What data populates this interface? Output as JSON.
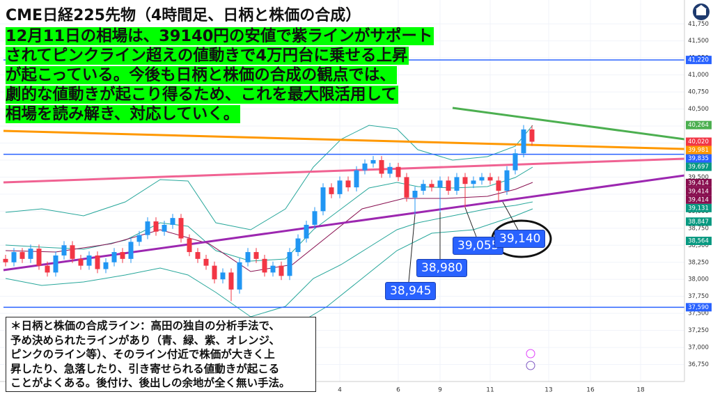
{
  "chart_data": {
    "type": "candlestick",
    "title": "CME日経225先物（4時間足、日柄と株価の合成）",
    "subtitle": [
      "12月11日の相場は、39140円の安値で紫ラインがサポート",
      "されてピンクライン超えの値動きで4万円台に乗せる上昇",
      "が起こっている。今後も日柄と株価の合成の観点では、",
      "劇的な値動きが起こり得るため、これを最大限活用して",
      "相場を読み解き、対応していく。"
    ],
    "note": [
      "＊日柄と株価の合成ライン：高田の独自の分析手法で、",
      "予め決められたラインがあり（青、緑、紫、オレンジ、",
      "ピンクのライン等）、そのライン付近で株価が大きく上",
      "昇したり、急落したり、引き寄せられる値動きが起こる",
      "ことがよくある。後付け、後出しの余地が全く無い手法。"
    ],
    "annotations": [
      "38,945",
      "38,980",
      "39,055",
      "39,140"
    ],
    "categories": [
      null,
      null,
      null,
      null,
      null,
      null,
      null,
      null,
      null,
      null,
      null,
      null,
      null,
      null,
      null,
      null,
      null,
      null,
      null,
      null,
      null,
      null,
      null,
      null,
      null,
      null,
      null,
      null,
      null,
      null,
      null,
      null,
      null,
      null,
      null,
      null,
      null,
      null,
      null,
      null,
      "4",
      null,
      null,
      null,
      null,
      null,
      null,
      "6",
      null,
      null,
      null,
      null,
      "9",
      null,
      null,
      null,
      null,
      null,
      "11",
      null,
      null,
      null,
      null,
      null,
      null,
      "13",
      null,
      null,
      null,
      null,
      "16",
      null,
      null,
      null,
      null,
      null,
      "18",
      null,
      null,
      null,
      null
    ],
    "open": [
      38300,
      38250,
      38400,
      38300,
      38450,
      38200,
      38100,
      38350,
      38500,
      38300,
      38200,
      38350,
      38150,
      38250,
      38400,
      38300,
      38550,
      38650,
      38850,
      38700,
      38800,
      38900,
      38600,
      38400,
      38300,
      38200,
      38000,
      38100,
      37850,
      38250,
      38400,
      38300,
      38100,
      38200,
      38050,
      38400,
      38600,
      38800,
      39000,
      39350,
      39250,
      39450,
      39350,
      39600,
      39700,
      39750,
      39550,
      39650,
      39500,
      39200,
      39300,
      39400,
      39350,
      39450,
      39300,
      39500,
      39400,
      39450,
      39500,
      39450,
      39300,
      39600,
      39850,
      40200,
      null,
      null,
      null,
      null,
      null,
      null,
      null,
      null,
      null,
      null,
      null,
      null,
      null,
      null,
      null,
      null,
      null
    ],
    "high": [
      38360,
      38460,
      38460,
      38510,
      38510,
      38260,
      38410,
      38560,
      38560,
      38360,
      38410,
      38410,
      38310,
      38460,
      38460,
      38610,
      38710,
      38910,
      38910,
      38860,
      38960,
      38960,
      38660,
      38460,
      38360,
      38260,
      38160,
      38160,
      38310,
      38460,
      38460,
      38360,
      38260,
      38260,
      38460,
      38660,
      38860,
      39060,
      39410,
      39410,
      39510,
      39510,
      39660,
      39760,
      39810,
      39810,
      39710,
      39710,
      39560,
      39360,
      39460,
      39460,
      39510,
      39510,
      39560,
      39560,
      39510,
      39560,
      39560,
      39510,
      39660,
      39910,
      40264,
      40260,
      null,
      null,
      null,
      null,
      null,
      null,
      null,
      null,
      null,
      null,
      null,
      null,
      null,
      null,
      null,
      null,
      null
    ],
    "low": [
      38190,
      38190,
      38240,
      38240,
      38140,
      38040,
      38040,
      38290,
      38240,
      38140,
      38140,
      38090,
      38090,
      38190,
      38240,
      38240,
      38490,
      38590,
      38640,
      38640,
      38740,
      38540,
      38340,
      38240,
      38140,
      37940,
      37940,
      37680,
      37790,
      38190,
      38240,
      38040,
      38040,
      37990,
      37990,
      38340,
      38540,
      38740,
      38940,
      39190,
      39190,
      39290,
      39290,
      39540,
      39640,
      39490,
      39490,
      39440,
      39140,
      38945,
      39240,
      39290,
      38980,
      39240,
      39240,
      39055,
      39340,
      39390,
      39390,
      39140,
      39240,
      39540,
      39790,
      39960,
      null,
      null,
      null,
      null,
      null,
      null,
      null,
      null,
      null,
      null,
      null,
      null,
      null,
      null,
      null,
      null,
      null
    ],
    "close": [
      38250,
      38400,
      38300,
      38450,
      38200,
      38100,
      38350,
      38500,
      38300,
      38200,
      38350,
      38150,
      38250,
      38400,
      38300,
      38550,
      38650,
      38850,
      38700,
      38800,
      38900,
      38600,
      38400,
      38300,
      38200,
      38000,
      38100,
      37850,
      38250,
      38400,
      38300,
      38100,
      38200,
      38050,
      38400,
      38600,
      38800,
      39000,
      39350,
      39250,
      39450,
      39350,
      39600,
      39700,
      39750,
      39550,
      39650,
      39500,
      39200,
      39300,
      39400,
      39350,
      39450,
      39300,
      39500,
      39400,
      39450,
      39500,
      39450,
      39300,
      39600,
      39850,
      40200,
      40020,
      null,
      null,
      null,
      null,
      null,
      null,
      null,
      null,
      null,
      null,
      null,
      null,
      null,
      null,
      null,
      null,
      null
    ],
    "up_color": "#2196f3",
    "down_color": "#f23645",
    "ylim": [
      36500,
      42100
    ],
    "yticks": [
      {
        "value": 36750,
        "label": "36,750"
      },
      {
        "value": 37000,
        "label": "37,000"
      },
      {
        "value": 37250,
        "label": "37,250"
      },
      {
        "value": 37500,
        "label": "37,500"
      },
      {
        "value": 37750,
        "label": "37,750"
      },
      {
        "value": 38000,
        "label": "38,000"
      },
      {
        "value": 38250,
        "label": "38,250"
      },
      {
        "value": 38500,
        "label": "38,500"
      },
      {
        "value": 38750,
        "label": "38,750"
      },
      {
        "value": 39000,
        "label": "39,000"
      },
      {
        "value": 39250,
        "label": "39,250"
      },
      {
        "value": 39500,
        "label": "39,500"
      },
      {
        "value": 39750,
        "label": "39,750"
      },
      {
        "value": 40000,
        "label": "40,000"
      },
      {
        "value": 40250,
        "label": "40,250"
      },
      {
        "value": 40500,
        "label": "40,500"
      },
      {
        "value": 40750,
        "label": "40,750"
      },
      {
        "value": 41000,
        "label": "41,000"
      },
      {
        "value": 41250,
        "label": "41,250"
      },
      {
        "value": 41500,
        "label": "41,500"
      },
      {
        "value": 41750,
        "label": "41,750"
      }
    ],
    "grid": true,
    "price_labels": [
      {
        "value": 41220,
        "label": "41,220",
        "color": "#2962ff",
        "hline": true
      },
      {
        "value": 40264,
        "label": "40,264",
        "color": "#4caf50"
      },
      {
        "value": 40020,
        "label": "40,020",
        "color": "#f23645"
      },
      {
        "value": 39981,
        "label": "39,981",
        "color": "#ff9800"
      },
      {
        "value": 39835,
        "label": "39,835",
        "color": "#2962ff",
        "hline": true
      },
      {
        "value": 39697,
        "label": "39,697",
        "color": "#089981"
      },
      {
        "value": 39414,
        "label": "39,414",
        "color": "#880e4f"
      },
      {
        "value": 39414,
        "label": "39,414",
        "color": "#880e4f"
      },
      {
        "value": 39414,
        "label": "39,414",
        "color": "#880e4f"
      },
      {
        "value": 39131,
        "label": "39,131",
        "color": "#089981"
      },
      {
        "value": 38847,
        "label": "38,847",
        "color": "#089981"
      },
      {
        "value": 38564,
        "label": "38,564",
        "color": "#089981"
      },
      {
        "value": 37590,
        "label": "37,590",
        "color": "#2962ff",
        "hline": true
      }
    ]
  }
}
